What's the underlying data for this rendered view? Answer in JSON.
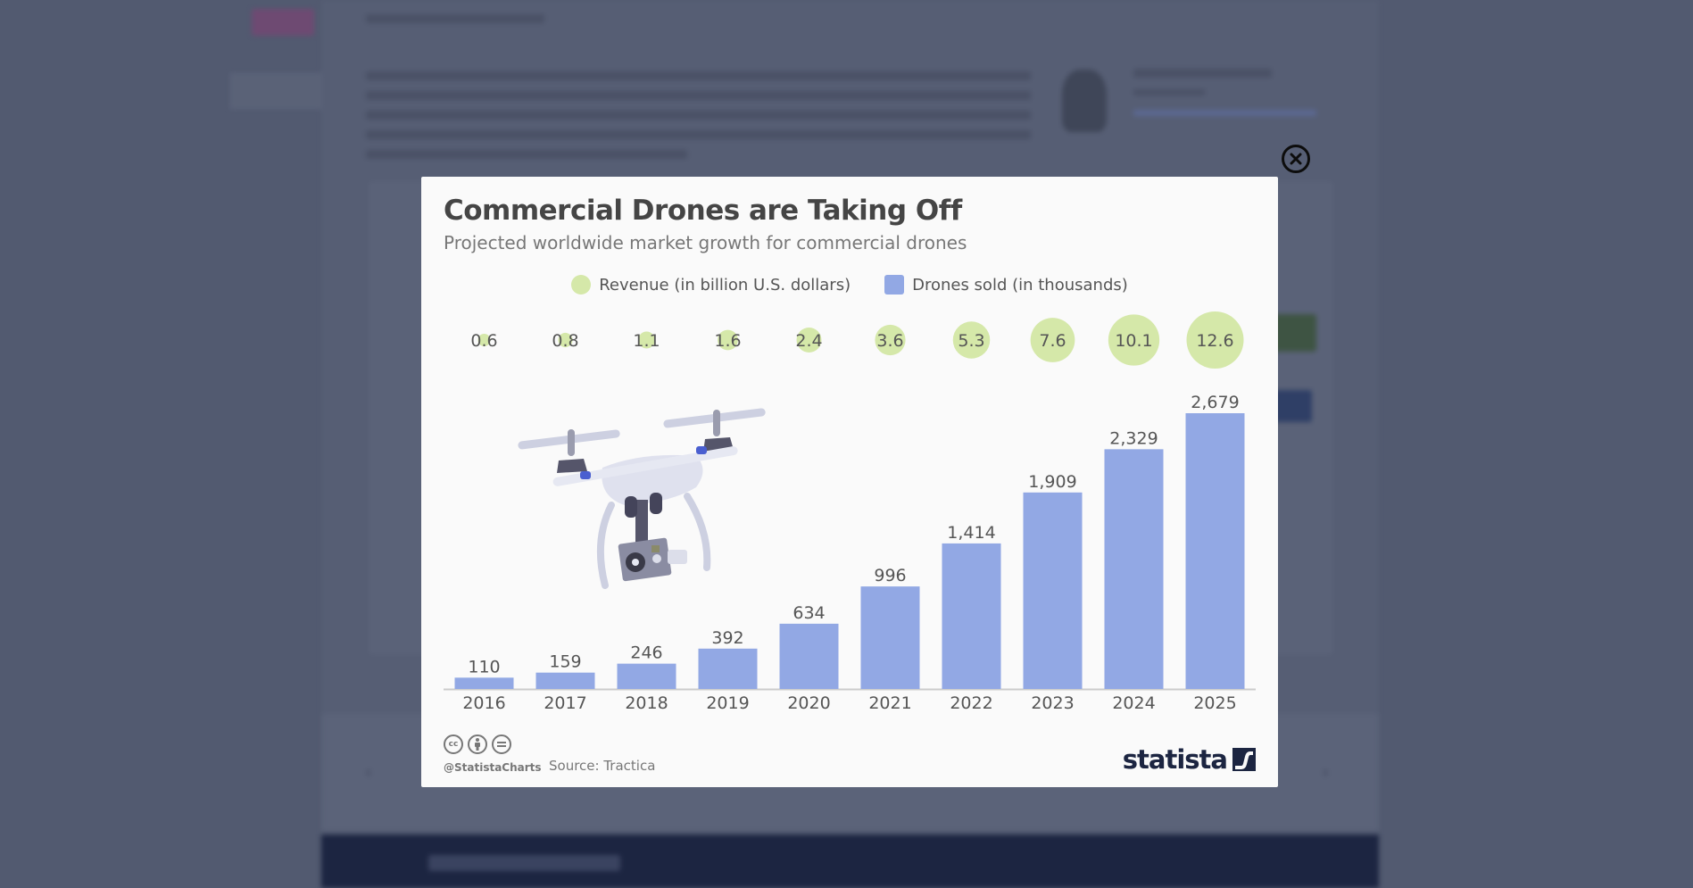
{
  "modal": {
    "close_label": "Close",
    "title": "Commercial Drones are Taking Off",
    "subtitle": "Projected worldwide market growth for commercial drones",
    "footer": {
      "handle": "@StatistaCharts",
      "source": "Source: Tractica",
      "logo_text": "statista",
      "license_icons": [
        "cc-icon",
        "attribution-icon",
        "no-derivatives-icon"
      ]
    }
  },
  "colors": {
    "revenue": "#d5e8a9",
    "drones": "#92a8e4",
    "text": "#454545",
    "axis": "#cccccc",
    "logo": "#1c2541"
  },
  "chart_data": {
    "type": "bar",
    "title": "Commercial Drones are Taking Off",
    "subtitle": "Projected worldwide market growth for commercial drones",
    "xlabel": "",
    "ylabel": "",
    "categories": [
      "2016",
      "2017",
      "2018",
      "2019",
      "2020",
      "2021",
      "2022",
      "2023",
      "2024",
      "2025"
    ],
    "legend_position": "top-center",
    "grid": false,
    "series": [
      {
        "name": "Revenue (in billion U.S. dollars)",
        "type": "bubble",
        "values": [
          0.6,
          0.8,
          1.1,
          1.6,
          2.4,
          3.6,
          5.3,
          7.6,
          10.1,
          12.6
        ],
        "labels": [
          "0.6",
          "0.8",
          "1.1",
          "1.6",
          "2.4",
          "3.6",
          "5.3",
          "7.6",
          "10.1",
          "12.6"
        ]
      },
      {
        "name": "Drones sold (in thousands)",
        "type": "bar",
        "values": [
          110,
          159,
          246,
          392,
          634,
          996,
          1414,
          1909,
          2329,
          2679
        ],
        "labels": [
          "110",
          "159",
          "246",
          "392",
          "634",
          "996",
          "1,414",
          "1,909",
          "2,329",
          "2,679"
        ]
      }
    ],
    "ylim": [
      0,
      2679
    ],
    "source": "Source: Tractica"
  }
}
